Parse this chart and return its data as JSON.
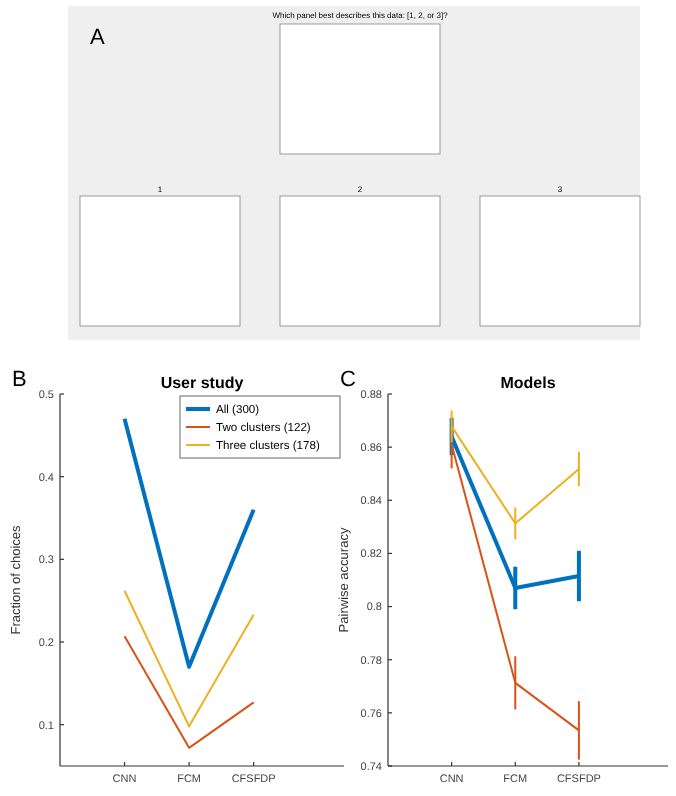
{
  "chart_data": [
    {
      "type": "other",
      "title": "Which panel best describes this data: [1, 2, or 3]?",
      "annotations": [
        "A",
        "1",
        "2",
        "3"
      ]
    },
    {
      "type": "line",
      "title": "User study",
      "ylabel": "Fraction of choices",
      "categories": [
        "CNN",
        "FCM",
        "CFSFDP"
      ],
      "ylim": [
        0.05,
        0.5
      ],
      "yticks": [
        0.1,
        0.2,
        0.3,
        0.4,
        0.5
      ],
      "grid": false,
      "legend": "top right",
      "marker": "none",
      "line_style": "solid",
      "annotations": [
        "B"
      ],
      "series": [
        {
          "name": "All (300)",
          "color": "#0072bd",
          "values": [
            0.47,
            0.17,
            0.36
          ]
        },
        {
          "name": "Two clusters (122)",
          "color": "#d95319",
          "values": [
            0.207,
            0.072,
            0.127
          ]
        },
        {
          "name": "Three clusters (178)",
          "color": "#edb120",
          "values": [
            0.262,
            0.098,
            0.233
          ]
        }
      ]
    },
    {
      "type": "line",
      "title": "Models",
      "ylabel": "Pairwise accuracy",
      "categories": [
        "CNN",
        "FCM",
        "CFSFDP"
      ],
      "ylim": [
        0.74,
        0.88
      ],
      "yticks": [
        0.74,
        0.76,
        0.78,
        0.8,
        0.82,
        0.84,
        0.86,
        0.88
      ],
      "grid": false,
      "legend": false,
      "marker": "none",
      "line_style": "solid",
      "annotations": [
        "C"
      ],
      "series": [
        {
          "color": "#0072bd",
          "values": [
            0.864,
            0.807,
            0.8115
          ],
          "errors": [
            0.007,
            0.008,
            0.0095
          ]
        },
        {
          "color": "#d95319",
          "values": [
            0.861,
            0.7713,
            0.7534
          ],
          "errors": [
            0.009,
            0.01,
            0.011
          ]
        },
        {
          "color": "#edb120",
          "values": [
            0.8678,
            0.8313,
            0.8518
          ],
          "errors": [
            0.006,
            0.006,
            0.0065
          ]
        }
      ]
    }
  ]
}
